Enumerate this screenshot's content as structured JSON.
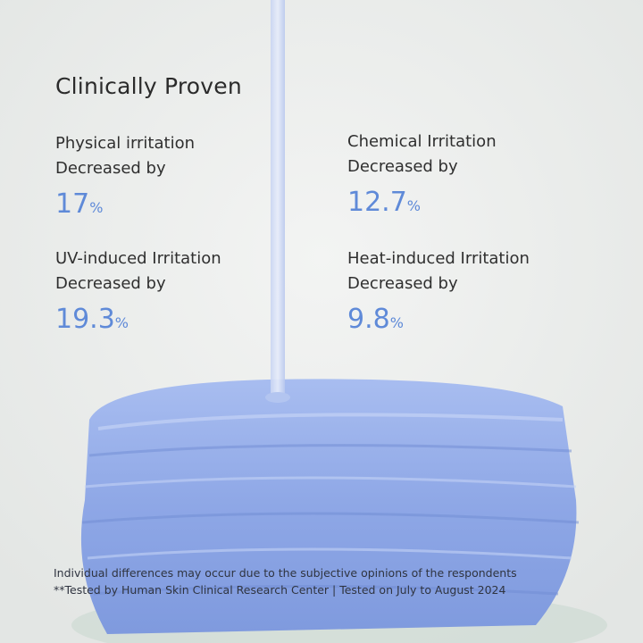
{
  "title": "Clinically Proven",
  "stats": [
    {
      "line1": "Physical irritation",
      "line2": "Decreased by",
      "value": 17,
      "unit": "%"
    },
    {
      "line1": "Chemical Irritation",
      "line2": "Decreased by",
      "value": 12.7,
      "unit": "%"
    },
    {
      "line1": "UV-induced Irritation",
      "line2": "Decreased by",
      "value": 19.3,
      "unit": "%"
    },
    {
      "line1": "Heat-induced Irritation",
      "line2": "Decreased by",
      "value": 9.8,
      "unit": "%"
    }
  ],
  "footnotes": [
    "Individual differences may occur due to the subjective opinions of the respondents",
    "**Tested by Human Skin Clinical Research Center | Tested on July to August 2024"
  ]
}
